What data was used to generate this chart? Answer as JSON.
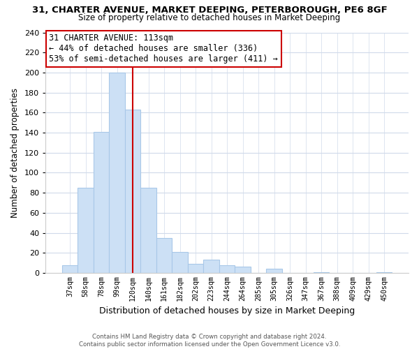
{
  "title": "31, CHARTER AVENUE, MARKET DEEPING, PETERBOROUGH, PE6 8GF",
  "subtitle": "Size of property relative to detached houses in Market Deeping",
  "xlabel": "Distribution of detached houses by size in Market Deeping",
  "ylabel": "Number of detached properties",
  "bar_labels": [
    "37sqm",
    "58sqm",
    "78sqm",
    "99sqm",
    "120sqm",
    "140sqm",
    "161sqm",
    "182sqm",
    "202sqm",
    "223sqm",
    "244sqm",
    "264sqm",
    "285sqm",
    "305sqm",
    "326sqm",
    "347sqm",
    "367sqm",
    "388sqm",
    "409sqm",
    "429sqm",
    "450sqm"
  ],
  "bar_values": [
    8,
    85,
    141,
    200,
    163,
    85,
    35,
    21,
    9,
    13,
    8,
    6,
    0,
    4,
    0,
    0,
    1,
    0,
    0,
    0,
    1
  ],
  "bar_color": "#cce0f5",
  "bar_edge_color": "#a8c8e8",
  "vline_color": "#cc0000",
  "vline_x": 4,
  "annotation_text": "31 CHARTER AVENUE: 113sqm\n← 44% of detached houses are smaller (336)\n53% of semi-detached houses are larger (411) →",
  "annotation_box_color": "#ffffff",
  "annotation_box_edge": "#cc0000",
  "ylim": [
    0,
    240
  ],
  "yticks": [
    0,
    20,
    40,
    60,
    80,
    100,
    120,
    140,
    160,
    180,
    200,
    220,
    240
  ],
  "footer1": "Contains HM Land Registry data © Crown copyright and database right 2024.",
  "footer2": "Contains public sector information licensed under the Open Government Licence v3.0.",
  "bg_color": "#ffffff",
  "grid_color": "#d0daea"
}
